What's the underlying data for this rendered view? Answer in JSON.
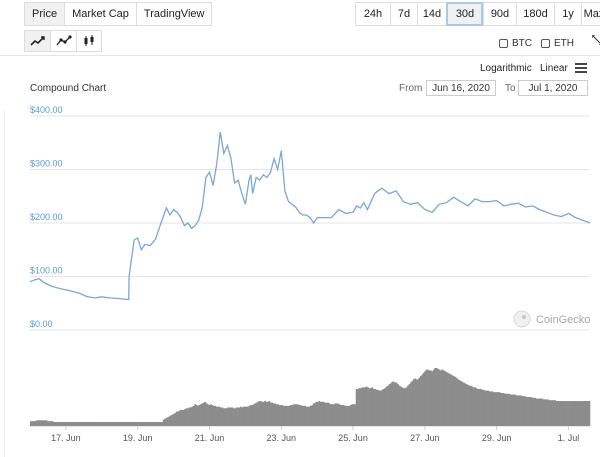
{
  "type_tabs": [
    "Price",
    "Market Cap",
    "TradingView"
  ],
  "range_tabs": [
    "24h",
    "7d",
    "14d",
    "30d",
    "90d",
    "180d",
    "1y",
    "Max"
  ],
  "compare": {
    "btc": "BTC",
    "eth": "ETH"
  },
  "scale": {
    "log": "Logarithmic",
    "linear": "Linear"
  },
  "chart_header": {
    "title": "Compound Chart",
    "from_label": "From",
    "from_value": "Jun 16, 2020",
    "to_label": "To",
    "to_value": "Jul 1, 2020"
  },
  "watermark": "CoinGecko",
  "colors": {
    "line": "#7aa6d8",
    "volume": "#8c8c8c",
    "axis_label": "#5b9bd5",
    "grid": "#e6e6e6",
    "selected_outline": "#a9c8ea"
  },
  "chart_data": {
    "type": "line",
    "y_ticks": [
      "$400.00",
      "$300.00",
      "$200.00",
      "$100.00",
      "$0.00"
    ],
    "y_tick_values": [
      400,
      300,
      200,
      100,
      0
    ],
    "ylim": [
      0,
      400
    ],
    "x_ticks": [
      "17. Jun",
      "19. Jun",
      "21. Jun",
      "23. Jun",
      "25. Jun",
      "27. Jun",
      "29. Jun",
      "1. Jul"
    ],
    "x_tick_days": [
      1,
      3,
      5,
      7,
      9,
      11,
      13,
      15
    ],
    "xlim_days": [
      0.0,
      15.6
    ],
    "series": [
      {
        "x": [
          0.0,
          0.1,
          0.25,
          0.4,
          0.6,
          0.8,
          1.0,
          1.2,
          1.4,
          1.6,
          1.8,
          2.0,
          2.2,
          2.4,
          2.6,
          2.75,
          2.76,
          2.9,
          3.0,
          3.1,
          3.2,
          3.35,
          3.5,
          3.65,
          3.8,
          3.9,
          4.0,
          4.1,
          4.2,
          4.3,
          4.4,
          4.5,
          4.6,
          4.7,
          4.8,
          4.9,
          5.0,
          5.1,
          5.2,
          5.3,
          5.4,
          5.5,
          5.6,
          5.7,
          5.8,
          5.9,
          6.0,
          6.1,
          6.15,
          6.2,
          6.3,
          6.4,
          6.5,
          6.6,
          6.7,
          6.8,
          6.9,
          7.0,
          7.1,
          7.2,
          7.3,
          7.4,
          7.5,
          7.6,
          7.7,
          7.8,
          7.85,
          7.9,
          8.0,
          8.2,
          8.4,
          8.6,
          8.8,
          9.0,
          9.1,
          9.2,
          9.3,
          9.4,
          9.5,
          9.6,
          9.8,
          10.0,
          10.2,
          10.4,
          10.6,
          10.8,
          11.0,
          11.2,
          11.4,
          11.6,
          11.8,
          12.0,
          12.2,
          12.4,
          12.6,
          12.8,
          13.0,
          13.2,
          13.4,
          13.6,
          13.8,
          14.0,
          14.2,
          14.4,
          14.6,
          14.8,
          15.0,
          15.2,
          15.4,
          15.6
        ],
        "y": [
          90,
          93,
          96,
          88,
          82,
          78,
          75,
          72,
          68,
          62,
          60,
          62,
          60,
          59,
          58,
          57,
          100,
          168,
          172,
          150,
          160,
          158,
          170,
          200,
          228,
          215,
          225,
          220,
          210,
          195,
          200,
          190,
          195,
          205,
          230,
          285,
          295,
          270,
          310,
          370,
          330,
          345,
          320,
          275,
          280,
          255,
          235,
          280,
          290,
          255,
          285,
          280,
          290,
          285,
          295,
          320,
          300,
          335,
          260,
          240,
          235,
          230,
          220,
          215,
          215,
          210,
          205,
          200,
          210,
          210,
          210,
          225,
          218,
          220,
          232,
          228,
          238,
          225,
          240,
          255,
          265,
          255,
          260,
          240,
          235,
          238,
          225,
          220,
          235,
          238,
          248,
          240,
          232,
          245,
          240,
          240,
          242,
          232,
          235,
          237,
          230,
          232,
          225,
          220,
          215,
          212,
          218,
          210,
          205,
          200
        ]
      }
    ],
    "volume": [
      6,
      6,
      6,
      6,
      7,
      7,
      7,
      7,
      7,
      7,
      7,
      7,
      6,
      6,
      6,
      6,
      5,
      5,
      5,
      5,
      5,
      5,
      5,
      5,
      5,
      5,
      5,
      5,
      5,
      5,
      5,
      5,
      5,
      5,
      5,
      5,
      5,
      5,
      5,
      5,
      5,
      5,
      5,
      5,
      5,
      5,
      5,
      5,
      5,
      5,
      5,
      5,
      5,
      5,
      5,
      5,
      5,
      5,
      5,
      5,
      5,
      5,
      5,
      5,
      5,
      5,
      5,
      5,
      5,
      5,
      5,
      5,
      5,
      5,
      5,
      5,
      5,
      5,
      5,
      5,
      5,
      5,
      5,
      5,
      5,
      5,
      5,
      5,
      5,
      5,
      5,
      5,
      5,
      8,
      9,
      10,
      11,
      12,
      13,
      14,
      15,
      16,
      18,
      18,
      19,
      20,
      20,
      20,
      21,
      22,
      22,
      23,
      23,
      24,
      25,
      27,
      26,
      25,
      26,
      27,
      28,
      29,
      30,
      28,
      27,
      26,
      27,
      26,
      25,
      25,
      24,
      24,
      24,
      23,
      23,
      22,
      22,
      22,
      23,
      23,
      23,
      23,
      22,
      22,
      23,
      23,
      23,
      24,
      23,
      24,
      24,
      24,
      24,
      25,
      26,
      26,
      27,
      28,
      29,
      30,
      31,
      31,
      30,
      30,
      31,
      30,
      30,
      31,
      29,
      29,
      28,
      28,
      27,
      27,
      26,
      26,
      26,
      25,
      25,
      25,
      25,
      25,
      26,
      26,
      27,
      27,
      27,
      27,
      26,
      26,
      25,
      25,
      25,
      24,
      24,
      24,
      25,
      26,
      28,
      29,
      30,
      30,
      31,
      30,
      30,
      30,
      29,
      29,
      29,
      28,
      27,
      27,
      27,
      28,
      28,
      28,
      27,
      26,
      26,
      26,
      25,
      25,
      25,
      25,
      26,
      27,
      27,
      27,
      46,
      46,
      47,
      47,
      48,
      48,
      48,
      49,
      48,
      47,
      47,
      48,
      46,
      46,
      45,
      45,
      44,
      44,
      45,
      46,
      47,
      49,
      50,
      52,
      53,
      55,
      55,
      54,
      54,
      52,
      50,
      49,
      48,
      47,
      47,
      48,
      50,
      52,
      54,
      56,
      58,
      59,
      58,
      58,
      60,
      62,
      64,
      66,
      68,
      70,
      70,
      69,
      69,
      68,
      70,
      72,
      72,
      71,
      70,
      69,
      70,
      69,
      68,
      67,
      66,
      65,
      64,
      63,
      62,
      61,
      60,
      58,
      57,
      56,
      55,
      54,
      53,
      52,
      51,
      50,
      50,
      49,
      48,
      48,
      47,
      46,
      46,
      46,
      45,
      45,
      44,
      44,
      44,
      43,
      43,
      43,
      42,
      42,
      42,
      42,
      42,
      41,
      41,
      41,
      40,
      40,
      40,
      40,
      39,
      39,
      39,
      39,
      38,
      38,
      38,
      38,
      37,
      37,
      37,
      36,
      36,
      36,
      36,
      35,
      35,
      35,
      34,
      34,
      34,
      34,
      34,
      33,
      33,
      33,
      33,
      32,
      32,
      32,
      32,
      32,
      31,
      31,
      31,
      31,
      31,
      31,
      31,
      31,
      31,
      31,
      31,
      31,
      31,
      31,
      31,
      31,
      31,
      31,
      31,
      31,
      31,
      31,
      31,
      31
    ]
  }
}
